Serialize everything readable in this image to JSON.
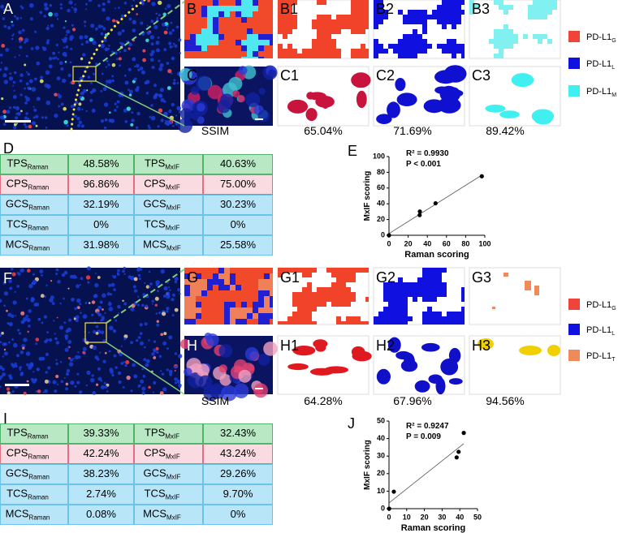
{
  "panel_labels": [
    "A",
    "B",
    "B1",
    "B2",
    "B3",
    "C",
    "C1",
    "C2",
    "C3",
    "D",
    "E",
    "F",
    "G",
    "G1",
    "G2",
    "G3",
    "H",
    "H1",
    "H2",
    "H3",
    "I",
    "J"
  ],
  "ssim": [
    {
      "label": "SSIM",
      "values": [
        "65.04%",
        "71.69%",
        "89.42%"
      ]
    },
    {
      "label": "SSIM",
      "values": [
        "64.28%",
        "67.96%",
        "94.56%"
      ]
    }
  ],
  "legends": [
    [
      {
        "text": "PD-L1",
        "sub": "G",
        "color": "#f0433a"
      },
      {
        "text": "PD-L1",
        "sub": "L",
        "color": "#1010e0"
      },
      {
        "text": "PD-L1",
        "sub": "M",
        "color": "#40f0f0"
      }
    ],
    [
      {
        "text": "PD-L1",
        "sub": "G",
        "color": "#f0433a"
      },
      {
        "text": "PD-L1",
        "sub": "L",
        "color": "#1010e0"
      },
      {
        "text": "PD-L1",
        "sub": "T",
        "color": "#f08a5a"
      }
    ]
  ],
  "tables": [
    {
      "rows": [
        {
          "label": "TPS",
          "sub": "Raman",
          "value": "48.58%",
          "label2": "TPS",
          "sub2": "MxIF",
          "value2": "40.63%",
          "color": "#b9e8c4",
          "border": "#4fb36a"
        },
        {
          "label": "CPS",
          "sub": "Raman",
          "value": "96.86%",
          "label2": "CPS",
          "sub2": "MxIF",
          "value2": "75.00%",
          "color": "#fadbe2",
          "border": "#e0707f"
        },
        {
          "label": "GCS",
          "sub": "Raman",
          "value": "32.19%",
          "label2": "GCS",
          "sub2": "MxIF",
          "value2": "30.23%",
          "color": "#b8e6f8",
          "border": "#6cc3e8"
        },
        {
          "label": "TCS",
          "sub": "Raman",
          "value": "0%",
          "label2": "TCS",
          "sub2": "MxIF",
          "value2": "0%",
          "color": "#b8e6f8",
          "border": "#6cc3e8"
        },
        {
          "label": "MCS",
          "sub": "Raman",
          "value": "31.98%",
          "label2": "MCS",
          "sub2": "MxIF",
          "value2": "25.58%",
          "color": "#b8e6f8",
          "border": "#6cc3e8"
        }
      ]
    },
    {
      "rows": [
        {
          "label": "TPS",
          "sub": "Raman",
          "value": "39.33%",
          "label2": "TPS",
          "sub2": "MxIF",
          "value2": "32.43%",
          "color": "#b9e8c4",
          "border": "#4fb36a"
        },
        {
          "label": "CPS",
          "sub": "Raman",
          "value": "42.24%",
          "label2": "CPS",
          "sub2": "MxIF",
          "value2": "43.24%",
          "color": "#fadbe2",
          "border": "#e0707f"
        },
        {
          "label": "GCS",
          "sub": "Raman",
          "value": "38.23%",
          "label2": "GCS",
          "sub2": "MxIF",
          "value2": "29.26%",
          "color": "#b8e6f8",
          "border": "#6cc3e8"
        },
        {
          "label": "TCS",
          "sub": "Raman",
          "value": "2.74%",
          "label2": "TCS",
          "sub2": "MxIF",
          "value2": "9.70%",
          "color": "#b8e6f8",
          "border": "#6cc3e8"
        },
        {
          "label": "MCS",
          "sub": "Raman",
          "value": "0.08%",
          "label2": "MCS",
          "sub2": "MxIF",
          "value2": "0%",
          "color": "#b8e6f8",
          "border": "#6cc3e8"
        }
      ]
    }
  ],
  "chart_data": [
    {
      "type": "scatter",
      "annotations": [
        "R² = 0.9930",
        "P < 0.001"
      ],
      "x_label": "Raman scoring",
      "y_label": "MxIF scoring",
      "x": [
        48.58,
        96.86,
        32.19,
        0,
        31.98
      ],
      "values": [
        40.63,
        75,
        30.23,
        0,
        25.58
      ],
      "color": "#000000",
      "xlim": [
        0,
        100
      ],
      "ylim": [
        0,
        100
      ],
      "xticks": [
        0,
        20,
        40,
        60,
        80,
        100
      ],
      "yticks": [
        0,
        20,
        40,
        60,
        80,
        100
      ]
    },
    {
      "type": "scatter",
      "annotations": [
        "R² = 0.9247",
        "P = 0.009"
      ],
      "x_label": "Raman scoring",
      "y_label": "MxIF scoring",
      "x": [
        39.33,
        42.24,
        38.23,
        2.74,
        0.08
      ],
      "values": [
        32.43,
        43.24,
        29.26,
        9.7,
        0
      ],
      "color": "#000000",
      "xlim": [
        0,
        50
      ],
      "ylim": [
        0,
        50
      ],
      "xticks": [
        0,
        10,
        20,
        30,
        40,
        50
      ],
      "yticks": [
        0,
        10,
        20,
        30,
        40,
        50
      ]
    }
  ]
}
